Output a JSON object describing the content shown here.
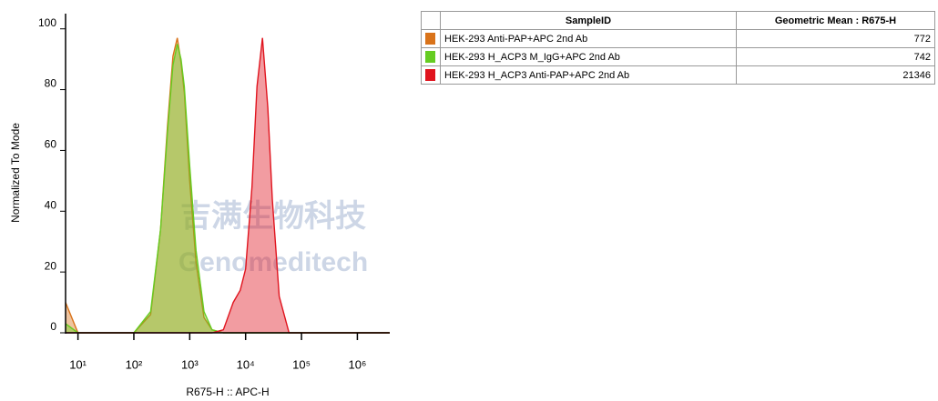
{
  "chart_data": {
    "type": "area",
    "xlabel": "R675-H :: APC-H",
    "ylabel": "Normalized To Mode",
    "log_x": true,
    "xlim": [
      6,
      3800000
    ],
    "ylim": [
      0,
      105
    ],
    "xticks": [
      {
        "value": 10,
        "label": "10¹"
      },
      {
        "value": 100,
        "label": "10²"
      },
      {
        "value": 1000,
        "label": "10³"
      },
      {
        "value": 10000,
        "label": "10⁴"
      },
      {
        "value": 100000,
        "label": "10⁵"
      },
      {
        "value": 1000000,
        "label": "10⁶"
      }
    ],
    "yticks": [
      0,
      20,
      40,
      60,
      80,
      100
    ],
    "x": [
      6,
      10,
      100,
      200,
      300,
      400,
      500,
      600,
      700,
      800,
      1000,
      1300,
      1800,
      2500,
      4000,
      6000,
      8000,
      10000,
      13000,
      16000,
      20000,
      25000,
      30000,
      40000,
      60000,
      100000,
      3800000
    ],
    "series": [
      {
        "name": "HEK-293 Anti-PAP+APC 2nd Ab",
        "color": "#d9731a",
        "values": [
          10,
          0,
          0,
          6,
          34,
          68,
          91,
          97,
          89,
          79,
          50,
          23,
          5,
          1,
          0,
          0,
          0,
          0,
          0,
          0,
          0,
          0,
          0,
          0,
          0,
          0,
          0
        ]
      },
      {
        "name": "HEK-293 H_ACP3 M_IgG+APC 2nd Ab",
        "color": "#66cc22",
        "values": [
          3,
          0,
          0,
          7,
          34,
          66,
          88,
          95,
          90,
          81,
          55,
          27,
          7,
          1,
          0,
          0,
          0,
          0,
          0,
          0,
          0,
          0,
          0,
          0,
          0,
          0,
          0
        ]
      },
      {
        "name": "HEK-293 H_ACP3 Anti-PAP+APC 2nd Ab",
        "color": "#e0141e",
        "values": [
          0,
          0,
          0,
          0,
          0,
          0,
          0,
          0,
          0,
          0,
          0,
          0,
          0,
          0,
          1,
          10,
          14,
          21,
          48,
          81,
          97,
          74,
          44,
          12,
          0,
          0,
          0
        ]
      }
    ]
  },
  "table": {
    "columns": [
      "SampleID",
      "Geometric Mean : R675-H"
    ],
    "rows": [
      {
        "name": "HEK-293 Anti-PAP+APC 2nd Ab",
        "value": 772,
        "color": "#d9731a"
      },
      {
        "name": "HEK-293 H_ACP3 M_IgG+APC 2nd Ab",
        "value": 742,
        "color": "#66cc22"
      },
      {
        "name": "HEK-293 H_ACP3 Anti-PAP+APC 2nd Ab",
        "value": 21346,
        "color": "#e0141e"
      }
    ]
  },
  "watermark": [
    "吉满生物科技",
    "Genomeditech"
  ]
}
